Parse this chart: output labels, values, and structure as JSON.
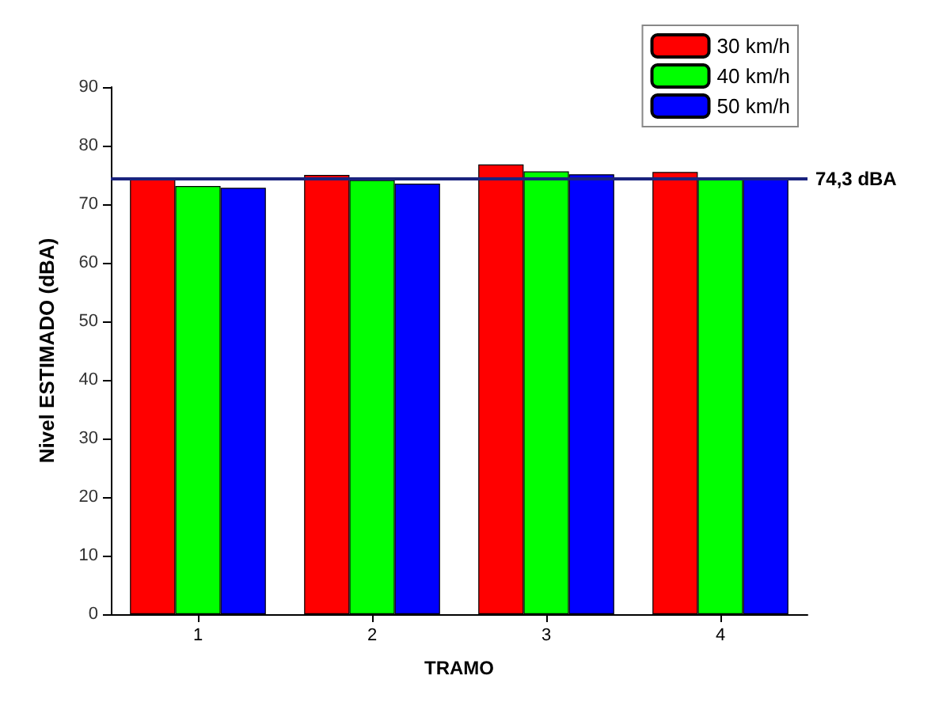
{
  "chart_data": {
    "type": "bar",
    "xlabel": "TRAMO",
    "ylabel": "Nivel ESTIMADO (dBA)",
    "categories": [
      "1",
      "2",
      "3",
      "4"
    ],
    "series": [
      {
        "name": "30 km/h",
        "color": "#ff0000",
        "values": [
          74.3,
          75.0,
          76.8,
          75.5
        ]
      },
      {
        "name": "40 km/h",
        "color": "#00ff00",
        "values": [
          73.1,
          74.1,
          75.6,
          74.3
        ]
      },
      {
        "name": "50 km/h",
        "color": "#0000ff",
        "values": [
          72.8,
          73.5,
          75.1,
          74.3
        ]
      }
    ],
    "ylim": [
      0,
      90
    ],
    "yticks": [
      0,
      10,
      20,
      30,
      40,
      50,
      60,
      70,
      80,
      90
    ],
    "ref_lines": [
      {
        "axis": "y",
        "value": 74.3,
        "label": "74,3 dBA",
        "color": "#1a237e"
      }
    ],
    "legend": "top right",
    "grid": false
  }
}
